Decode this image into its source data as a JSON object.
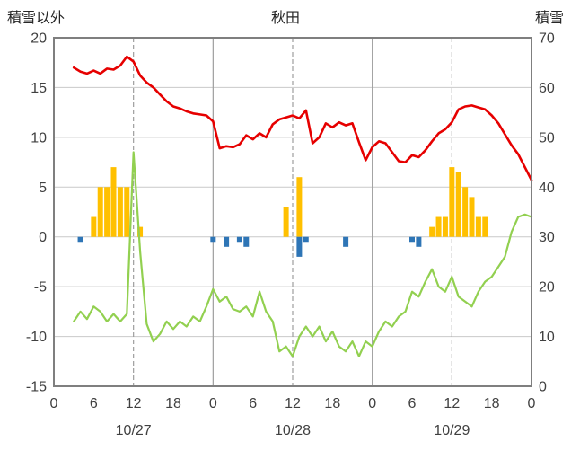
{
  "header": {
    "left_axis_title": "積雪以外",
    "title": "秋田",
    "right_axis_title": "積雪"
  },
  "chart_data": {
    "type": "line",
    "title": "秋田",
    "left_axis": {
      "label": "積雪以外",
      "min": -15,
      "max": 20,
      "ticks": [
        20,
        15,
        10,
        5,
        0,
        -5,
        -10,
        -15
      ]
    },
    "right_axis": {
      "label": "積雪",
      "min": 0,
      "max": 70,
      "ticks": [
        70,
        60,
        50,
        40,
        30,
        20,
        10,
        0
      ]
    },
    "x_hours_range": [
      0,
      72
    ],
    "x_tick_hours": [
      0,
      6,
      12,
      18,
      24,
      30,
      36,
      42,
      48,
      54,
      60,
      66,
      72
    ],
    "x_tick_labels": [
      "0",
      "6",
      "12",
      "18",
      "0",
      "6",
      "12",
      "18",
      "0",
      "6",
      "12",
      "18",
      "0"
    ],
    "day_labels": [
      {
        "label": "10/27",
        "center_hour": 12
      },
      {
        "label": "10/28",
        "center_hour": 36
      },
      {
        "label": "10/29",
        "center_hour": 60
      }
    ],
    "day_boundary_hours": [
      24,
      48
    ],
    "noon_dashed_hours": [
      12,
      36,
      60
    ],
    "grid": true,
    "colors": {
      "temperature": "#e60000",
      "snow_depth": "#92d050",
      "sunshine_bars": "#ffc000",
      "precip_bars": "#2e75b6",
      "gridline": "#c9c9c9",
      "day_line": "#9e9e9e",
      "plot_border": "#7f7f7f"
    },
    "series": [
      {
        "name": "temperature",
        "type": "line",
        "axis": "left",
        "color": "#e60000",
        "points": [
          [
            3,
            17.0
          ],
          [
            4,
            16.6
          ],
          [
            5,
            16.4
          ],
          [
            6,
            16.7
          ],
          [
            7,
            16.4
          ],
          [
            8,
            16.9
          ],
          [
            9,
            16.8
          ],
          [
            10,
            17.2
          ],
          [
            11,
            18.1
          ],
          [
            12,
            17.6
          ],
          [
            13,
            16.2
          ],
          [
            14,
            15.5
          ],
          [
            15,
            15.0
          ],
          [
            16,
            14.3
          ],
          [
            17,
            13.6
          ],
          [
            18,
            13.1
          ],
          [
            19,
            12.9
          ],
          [
            20,
            12.6
          ],
          [
            21,
            12.4
          ],
          [
            22,
            12.3
          ],
          [
            23,
            12.2
          ],
          [
            24,
            11.6
          ],
          [
            25,
            8.9
          ],
          [
            26,
            9.1
          ],
          [
            27,
            9.0
          ],
          [
            28,
            9.3
          ],
          [
            29,
            10.2
          ],
          [
            30,
            9.8
          ],
          [
            31,
            10.4
          ],
          [
            32,
            10.0
          ],
          [
            33,
            11.3
          ],
          [
            34,
            11.8
          ],
          [
            35,
            12.0
          ],
          [
            36,
            12.2
          ],
          [
            37,
            11.9
          ],
          [
            38,
            12.7
          ],
          [
            39,
            9.4
          ],
          [
            40,
            10.0
          ],
          [
            41,
            11.4
          ],
          [
            42,
            11.0
          ],
          [
            43,
            11.5
          ],
          [
            44,
            11.2
          ],
          [
            45,
            11.4
          ],
          [
            46,
            9.5
          ],
          [
            47,
            7.7
          ],
          [
            48,
            9.0
          ],
          [
            49,
            9.6
          ],
          [
            50,
            9.4
          ],
          [
            51,
            8.5
          ],
          [
            52,
            7.6
          ],
          [
            53,
            7.5
          ],
          [
            54,
            8.2
          ],
          [
            55,
            8.0
          ],
          [
            56,
            8.7
          ],
          [
            57,
            9.6
          ],
          [
            58,
            10.4
          ],
          [
            59,
            10.8
          ],
          [
            60,
            11.5
          ],
          [
            61,
            12.8
          ],
          [
            62,
            13.1
          ],
          [
            63,
            13.2
          ],
          [
            64,
            13.0
          ],
          [
            65,
            12.8
          ],
          [
            66,
            12.2
          ],
          [
            67,
            11.4
          ],
          [
            68,
            10.3
          ],
          [
            69,
            9.2
          ],
          [
            70,
            8.3
          ],
          [
            71,
            7.0
          ],
          [
            72,
            5.7
          ]
        ]
      },
      {
        "name": "snow-depth",
        "type": "line",
        "axis": "right",
        "color": "#92d050",
        "points": [
          [
            3,
            13
          ],
          [
            4,
            15
          ],
          [
            5,
            13.5
          ],
          [
            6,
            16
          ],
          [
            7,
            15
          ],
          [
            8,
            13
          ],
          [
            9,
            14.5
          ],
          [
            10,
            13
          ],
          [
            11,
            14.5
          ],
          [
            12,
            47
          ],
          [
            13,
            27
          ],
          [
            14,
            12.5
          ],
          [
            15,
            9
          ],
          [
            16,
            10.5
          ],
          [
            17,
            13
          ],
          [
            18,
            11.5
          ],
          [
            19,
            13
          ],
          [
            20,
            12
          ],
          [
            21,
            14
          ],
          [
            22,
            13
          ],
          [
            23,
            16
          ],
          [
            24,
            19.5
          ],
          [
            25,
            17
          ],
          [
            26,
            18
          ],
          [
            27,
            15.5
          ],
          [
            28,
            15
          ],
          [
            29,
            16
          ],
          [
            30,
            14
          ],
          [
            31,
            19
          ],
          [
            32,
            15
          ],
          [
            33,
            13
          ],
          [
            34,
            7
          ],
          [
            35,
            8
          ],
          [
            36,
            6
          ],
          [
            37,
            10
          ],
          [
            38,
            12
          ],
          [
            39,
            10
          ],
          [
            40,
            12
          ],
          [
            41,
            9
          ],
          [
            42,
            11
          ],
          [
            43,
            8
          ],
          [
            44,
            7
          ],
          [
            45,
            9
          ],
          [
            46,
            6
          ],
          [
            47,
            9
          ],
          [
            48,
            8
          ],
          [
            49,
            11
          ],
          [
            50,
            13
          ],
          [
            51,
            12
          ],
          [
            52,
            14
          ],
          [
            53,
            15
          ],
          [
            54,
            19
          ],
          [
            55,
            18
          ],
          [
            56,
            21
          ],
          [
            57,
            23.5
          ],
          [
            58,
            20
          ],
          [
            59,
            19
          ],
          [
            60,
            22
          ],
          [
            61,
            18
          ],
          [
            62,
            17
          ],
          [
            63,
            16
          ],
          [
            64,
            19
          ],
          [
            65,
            21
          ],
          [
            66,
            22
          ],
          [
            67,
            24
          ],
          [
            68,
            26
          ],
          [
            69,
            31
          ],
          [
            70,
            34
          ],
          [
            71,
            34.5
          ],
          [
            72,
            34
          ]
        ]
      },
      {
        "name": "sunshine-bars",
        "type": "bar",
        "axis": "left",
        "color": "#ffc000",
        "points": [
          [
            6,
            2
          ],
          [
            7,
            5
          ],
          [
            8,
            5
          ],
          [
            9,
            7
          ],
          [
            10,
            5
          ],
          [
            11,
            5
          ],
          [
            13,
            1
          ],
          [
            35,
            3
          ],
          [
            37,
            6
          ],
          [
            57,
            1
          ],
          [
            58,
            2
          ],
          [
            59,
            2
          ],
          [
            60,
            7
          ],
          [
            61,
            6.5
          ],
          [
            62,
            5
          ],
          [
            63,
            4
          ],
          [
            64,
            2
          ],
          [
            65,
            2
          ]
        ]
      },
      {
        "name": "precip-bars",
        "type": "bar",
        "axis": "left",
        "color": "#2e75b6",
        "points": [
          [
            4,
            -0.5
          ],
          [
            24,
            -0.5
          ],
          [
            26,
            -1
          ],
          [
            28,
            -0.5
          ],
          [
            29,
            -1
          ],
          [
            37,
            -2
          ],
          [
            38,
            -0.5
          ],
          [
            44,
            -1
          ],
          [
            54,
            -0.5
          ],
          [
            55,
            -1
          ]
        ]
      }
    ]
  }
}
